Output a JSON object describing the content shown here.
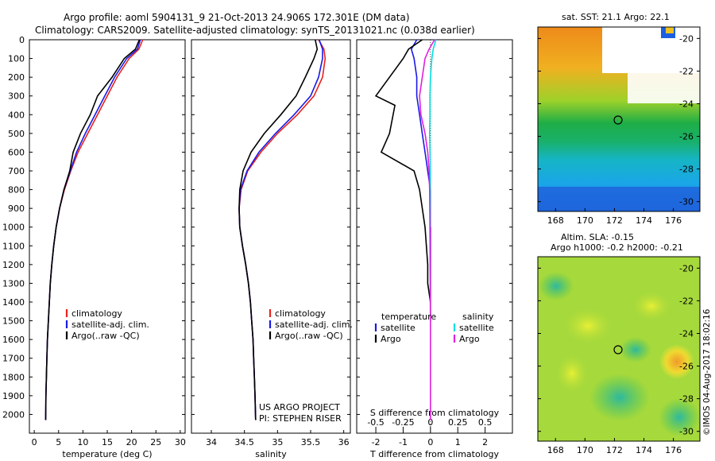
{
  "header": {
    "line1": "Argo profile: aoml 5904131_9 21-Oct-2013 24.906S 172.301E (DM data)",
    "line2": "Climatology: CARS2009. Satellite-adjusted climatology: synTS_20131021.nc (0.038d earlier)"
  },
  "colors": {
    "climatology": "#e8231e",
    "satellite": "#1a1ae6",
    "argo": "#000000",
    "sal_satellite": "#00e0e0",
    "sal_argo": "#e020e0"
  },
  "chart_data": [
    {
      "type": "line",
      "panel": "temperature",
      "xlabel": "temperature (deg C)",
      "xlim": [
        -1,
        31
      ],
      "xticks": [
        0,
        5,
        10,
        15,
        20,
        25,
        30
      ],
      "ylim": [
        2100,
        0
      ],
      "yticks": [
        0,
        100,
        200,
        300,
        400,
        500,
        600,
        700,
        800,
        900,
        1000,
        1100,
        1200,
        1300,
        1400,
        1500,
        1600,
        1700,
        1800,
        1900,
        2000
      ],
      "legend": [
        "climatology",
        "satellite-adj. clim.",
        "Argo(..raw -QC)"
      ],
      "series": [
        {
          "name": "climatology",
          "color": "#e8231e",
          "x": [
            22.3,
            21.5,
            19.5,
            17,
            15,
            13,
            11,
            9,
            7.5,
            6.2,
            5.2,
            4.5,
            4,
            3.6,
            3.3,
            3.1,
            2.9,
            2.7,
            2.6,
            2.5,
            2.4,
            2.35
          ],
          "y": [
            0,
            50,
            100,
            200,
            300,
            400,
            500,
            600,
            700,
            800,
            900,
            1000,
            1100,
            1200,
            1300,
            1400,
            1500,
            1600,
            1700,
            1800,
            1900,
            2030
          ]
        },
        {
          "name": "satellite-adj. clim.",
          "color": "#1a1ae6",
          "x": [
            21.8,
            21.2,
            19,
            16.5,
            14.5,
            12.5,
            10.5,
            8.7,
            7.4,
            6.1,
            5.2,
            4.5,
            4,
            3.6,
            3.3,
            3.1,
            2.9,
            2.7,
            2.6,
            2.5,
            2.4,
            2.35
          ],
          "y": [
            0,
            50,
            100,
            200,
            300,
            400,
            500,
            600,
            700,
            800,
            900,
            1000,
            1100,
            1200,
            1300,
            1400,
            1500,
            1600,
            1700,
            1800,
            1900,
            2030
          ]
        },
        {
          "name": "Argo(..raw -QC)",
          "color": "#000000",
          "x": [
            21.6,
            20.8,
            18.5,
            16,
            13,
            11.5,
            9.5,
            8,
            7.3,
            6.1,
            5.2,
            4.5,
            4,
            3.6,
            3.3,
            3.1,
            2.9,
            2.7,
            2.6,
            2.5,
            2.4,
            2.35
          ],
          "y": [
            0,
            50,
            100,
            200,
            300,
            400,
            500,
            600,
            700,
            800,
            900,
            1000,
            1100,
            1200,
            1300,
            1400,
            1500,
            1600,
            1700,
            1800,
            1900,
            2030
          ]
        }
      ]
    },
    {
      "type": "line",
      "panel": "salinity",
      "xlabel": "salinity",
      "xlim": [
        33.7,
        36.1
      ],
      "xticks": [
        34,
        34.5,
        35,
        35.5,
        36
      ],
      "ylim": [
        2100,
        0
      ],
      "legend": [
        "climatology",
        "satellite-adj. clim.",
        "Argo(..raw -QC)"
      ],
      "annotation": [
        "US ARGO PROJECT",
        "PI: STEPHEN RISER"
      ],
      "series": [
        {
          "name": "climatology",
          "color": "#e8231e",
          "x": [
            35.62,
            35.7,
            35.72,
            35.68,
            35.55,
            35.3,
            35.0,
            34.75,
            34.55,
            34.45,
            34.42,
            34.43,
            34.47,
            34.52,
            34.56,
            34.59,
            34.61,
            34.63,
            34.64,
            34.65,
            34.66,
            34.67
          ],
          "y": [
            0,
            50,
            100,
            200,
            300,
            400,
            500,
            600,
            700,
            800,
            900,
            1000,
            1100,
            1200,
            1300,
            1400,
            1500,
            1600,
            1700,
            1800,
            1900,
            2030
          ]
        },
        {
          "name": "satellite-adj. clim.",
          "color": "#1a1ae6",
          "x": [
            35.63,
            35.68,
            35.68,
            35.62,
            35.5,
            35.25,
            34.97,
            34.72,
            34.54,
            34.44,
            34.42,
            34.43,
            34.47,
            34.52,
            34.56,
            34.59,
            34.61,
            34.63,
            34.64,
            34.65,
            34.66,
            34.67
          ],
          "y": [
            0,
            50,
            100,
            200,
            300,
            400,
            500,
            600,
            700,
            800,
            900,
            1000,
            1100,
            1200,
            1300,
            1400,
            1500,
            1600,
            1700,
            1800,
            1900,
            2030
          ]
        },
        {
          "name": "Argo(..raw -QC)",
          "color": "#000000",
          "x": [
            35.57,
            35.6,
            35.55,
            35.42,
            35.28,
            35.05,
            34.8,
            34.6,
            34.48,
            34.43,
            34.42,
            34.43,
            34.47,
            34.52,
            34.56,
            34.59,
            34.61,
            34.63,
            34.64,
            34.65,
            34.66,
            34.67
          ],
          "y": [
            0,
            50,
            100,
            200,
            300,
            400,
            500,
            600,
            700,
            800,
            900,
            1000,
            1100,
            1200,
            1300,
            1400,
            1500,
            1600,
            1700,
            1800,
            1900,
            2030
          ]
        }
      ]
    },
    {
      "type": "line",
      "panel": "difference",
      "xlabel": "T difference from climatology",
      "xlabel2": "S difference from climatology",
      "xlim": [
        -2.7,
        3
      ],
      "xticks": [
        -2,
        -1,
        0,
        1,
        2
      ],
      "xticks_top": [
        -0.5,
        -0.25,
        0,
        0.25,
        0.5
      ],
      "ylim": [
        2100,
        0
      ],
      "legend_left_title": "temperature",
      "legend_right_title": "salinity",
      "legend": [
        "satellite",
        "Argo",
        "satellite",
        "Argo"
      ],
      "series": [
        {
          "name": "satellite",
          "group": "temperature",
          "color": "#1a1ae6",
          "x": [
            -0.5,
            -0.7,
            -0.6,
            -0.5,
            -0.5,
            -0.4,
            -0.3,
            -0.2,
            -0.1,
            0,
            0,
            0
          ],
          "y": [
            0,
            50,
            100,
            200,
            300,
            400,
            500,
            600,
            700,
            800,
            1000,
            1400
          ]
        },
        {
          "name": "Argo",
          "group": "temperature",
          "color": "#000000",
          "x": [
            -0.3,
            -0.8,
            -1.0,
            -2.0,
            -1.3,
            -1.5,
            -1.8,
            -0.6,
            -0.4,
            -0.2,
            -0.1,
            -0.1,
            0,
            0
          ],
          "y": [
            0,
            50,
            100,
            300,
            350,
            500,
            600,
            700,
            800,
            1000,
            1200,
            1300,
            1400,
            1500
          ]
        },
        {
          "name": "satellite",
          "group": "salinity",
          "color": "#00e0e0",
          "x": [
            0.2,
            0.1,
            0.05,
            0,
            -0.02,
            -0.02,
            -0.03,
            -0.02,
            -0.01,
            0,
            0
          ],
          "y": [
            0,
            50,
            100,
            200,
            300,
            400,
            500,
            600,
            700,
            800,
            1000
          ]
        },
        {
          "name": "Argo",
          "group": "salinity",
          "color": "#e020e0",
          "x": [
            0.15,
            -0.05,
            -0.2,
            -0.4,
            -0.35,
            -0.2,
            -0.1,
            -0.05,
            -0.03,
            -0.02,
            0,
            0,
            0
          ],
          "y": [
            0,
            50,
            100,
            300,
            400,
            500,
            600,
            700,
            800,
            1000,
            1500,
            1800,
            2030
          ]
        }
      ]
    }
  ],
  "maps": {
    "sst_title": "sat. SST: 21.1  Argo: 22.1",
    "sla_title1": "Altim. SLA: -0.15",
    "sla_title2": "Argo h1000: -0.2 h2000: -0.21",
    "xticks": [
      "168",
      "170",
      "172",
      "174",
      "176"
    ],
    "yticks": [
      "-20",
      "-22",
      "-24",
      "-26",
      "-28",
      "-30"
    ],
    "float_position": {
      "lon": 172.3,
      "lat": -24.906
    }
  },
  "credit": "©IMOS 04-Aug-2017 18:02:16"
}
